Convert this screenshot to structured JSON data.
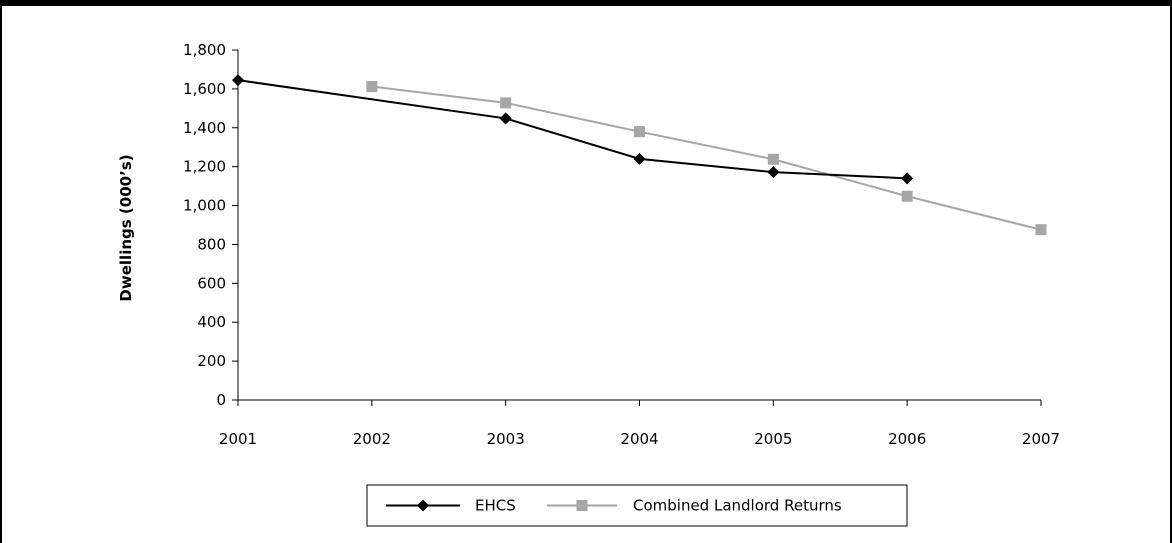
{
  "chart_data": {
    "type": "line",
    "title": "",
    "xlabel": "",
    "ylabel": "Dwellings (000’s)",
    "categories": [
      "2001",
      "2002",
      "2003",
      "2004",
      "2005",
      "2006",
      "2007"
    ],
    "ylim": [
      0,
      1800
    ],
    "yticks": [
      0,
      200,
      400,
      600,
      800,
      1000,
      1200,
      1400,
      1600,
      1800
    ],
    "ytick_labels": [
      "0",
      "200",
      "400",
      "600",
      "800",
      "1,000",
      "1,200",
      "1,400",
      "1,600",
      "1,800"
    ],
    "grid": false,
    "legend_position": "bottom",
    "series": [
      {
        "name": "EHCS",
        "color": "#000000",
        "marker": "diamond",
        "values": [
          1645,
          null,
          1448,
          1240,
          1172,
          1140,
          null
        ]
      },
      {
        "name": "Combined Landlord Returns",
        "color": "#a6a6a6",
        "marker": "square",
        "values": [
          null,
          1612,
          1528,
          1380,
          1238,
          1048,
          876
        ]
      }
    ]
  }
}
